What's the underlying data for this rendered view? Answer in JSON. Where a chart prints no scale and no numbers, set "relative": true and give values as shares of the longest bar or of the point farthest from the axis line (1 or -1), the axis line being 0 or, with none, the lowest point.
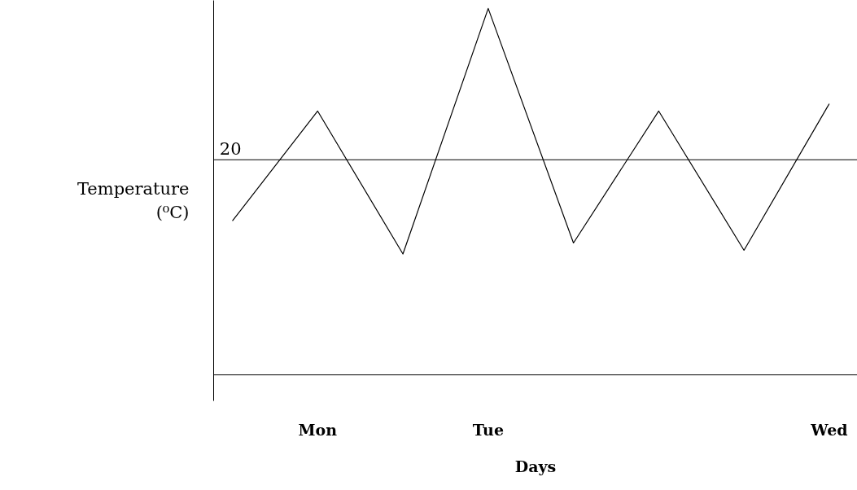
{
  "chart_data": {
    "type": "line",
    "relative": true,
    "ylabel": "Temperature (⁰C)",
    "xlabel": "Days",
    "categories": [
      null,
      "Mon",
      null,
      "Tue",
      null,
      null,
      null,
      "Wed"
    ],
    "values": [
      0.42,
      0.72,
      0.33,
      1.0,
      0.36,
      0.72,
      0.34,
      0.74
    ],
    "color": "#000000",
    "ref_lines": [
      {
        "axis": "y",
        "value": 0.587
      }
    ],
    "annotations": [
      "20"
    ],
    "grid": false,
    "marker": "none",
    "line_style": "solid"
  }
}
